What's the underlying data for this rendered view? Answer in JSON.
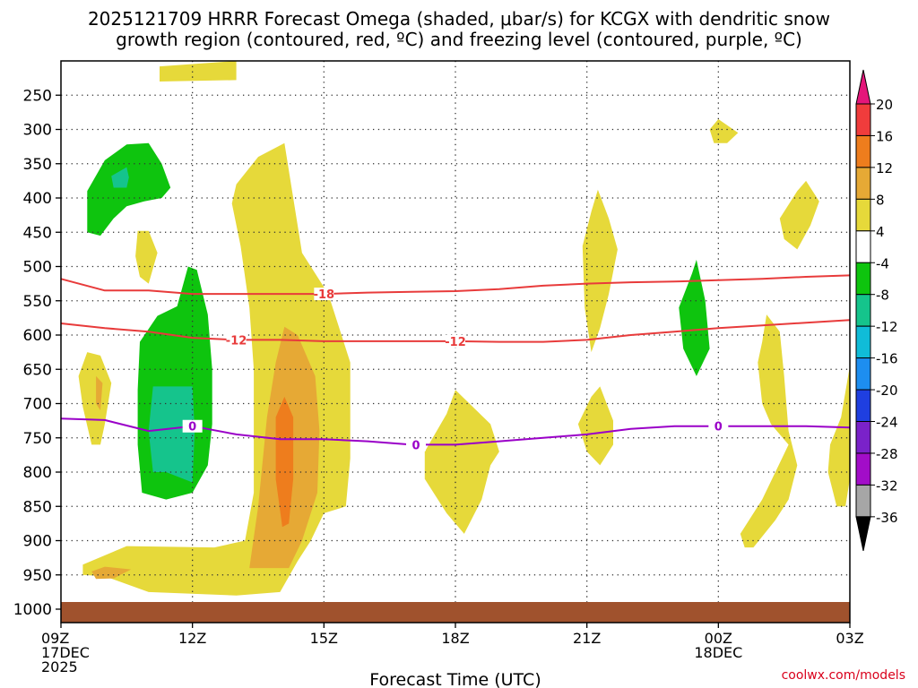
{
  "title_line1": "2025121709 HRRR Forecast Omega (shaded, μbar/s) for KCGX with dendritic snow",
  "title_line2": "growth region (contoured, red, ºC) and freezing level (contoured, purple, ºC)",
  "credit": "coolwx.com/models",
  "chart_data": {
    "type": "time-height contour",
    "xlabel": "Forecast Time (UTC)",
    "x_ticks": [
      {
        "hour": 0,
        "lines": [
          "09Z",
          "17DEC",
          "2025"
        ]
      },
      {
        "hour": 3,
        "lines": [
          "12Z"
        ]
      },
      {
        "hour": 6,
        "lines": [
          "15Z"
        ]
      },
      {
        "hour": 9,
        "lines": [
          "18Z"
        ]
      },
      {
        "hour": 12,
        "lines": [
          "21Z"
        ]
      },
      {
        "hour": 15,
        "lines": [
          "00Z",
          "18DEC"
        ]
      },
      {
        "hour": 18,
        "lines": [
          "03Z"
        ]
      }
    ],
    "xlim": [
      0,
      18
    ],
    "y_ticks": [
      250,
      300,
      350,
      400,
      450,
      500,
      550,
      600,
      650,
      700,
      750,
      800,
      850,
      900,
      950,
      1000
    ],
    "ylim": [
      1000,
      200
    ],
    "colorbar": {
      "labels": [
        "20",
        "16",
        "12",
        "8",
        "4",
        "-4",
        "-8",
        "-12",
        "-16",
        "-20",
        "-24",
        "-28",
        "-32",
        "-36"
      ],
      "colors": [
        "#f03c3c",
        "#ee7d1d",
        "#e6a935",
        "#e6d93a",
        "#ffffff",
        "#0ec40e",
        "#15c48c",
        "#10bcd8",
        "#1d8ef0",
        "#1f3fe0",
        "#7a22c9",
        "#a20dc8",
        "#a6a6a6"
      ],
      "top_color": "#e4167a",
      "bottom_color": "#000000"
    },
    "contour_labels": [
      {
        "text": "-18",
        "hour": 6.0,
        "p": 540,
        "color": "#e83b3b"
      },
      {
        "text": "-12",
        "hour": 4.0,
        "p": 607,
        "color": "#e83b3b"
      },
      {
        "text": "-12",
        "hour": 9.0,
        "p": 609,
        "color": "#e83b3b"
      },
      {
        "text": "0",
        "hour": 3.0,
        "p": 733,
        "color": "#9a00c8"
      },
      {
        "text": "0",
        "hour": 8.1,
        "p": 760,
        "color": "#9a00c8"
      },
      {
        "text": "0",
        "hour": 15.0,
        "p": 733,
        "color": "#9a00c8"
      }
    ],
    "contours": [
      {
        "name": "dgz-minus18-line",
        "color": "#e83b3b",
        "points": [
          [
            0,
            518
          ],
          [
            1,
            535
          ],
          [
            2,
            535
          ],
          [
            3,
            540
          ],
          [
            4,
            540
          ],
          [
            5,
            540
          ],
          [
            6,
            540
          ],
          [
            7,
            538
          ],
          [
            8,
            537
          ],
          [
            9,
            536
          ],
          [
            10,
            533
          ],
          [
            11,
            528
          ],
          [
            12,
            525
          ],
          [
            13,
            523
          ],
          [
            14,
            522
          ],
          [
            15,
            520
          ],
          [
            16,
            518
          ],
          [
            17,
            515
          ],
          [
            18,
            513
          ]
        ]
      },
      {
        "name": "dgz-minus12-line",
        "color": "#e83b3b",
        "points": [
          [
            0,
            583
          ],
          [
            1,
            590
          ],
          [
            2,
            595
          ],
          [
            3,
            604
          ],
          [
            4,
            607
          ],
          [
            5,
            607
          ],
          [
            6,
            609
          ],
          [
            7,
            609
          ],
          [
            8,
            609
          ],
          [
            9,
            609
          ],
          [
            10,
            610
          ],
          [
            11,
            610
          ],
          [
            12,
            607
          ],
          [
            13,
            600
          ],
          [
            14,
            595
          ],
          [
            15,
            590
          ],
          [
            16,
            586
          ],
          [
            17,
            582
          ],
          [
            18,
            578
          ]
        ]
      },
      {
        "name": "freezing-level-line",
        "color": "#9a00c8",
        "points": [
          [
            0,
            722
          ],
          [
            1,
            724
          ],
          [
            2,
            740
          ],
          [
            3,
            733
          ],
          [
            4,
            745
          ],
          [
            5,
            752
          ],
          [
            6,
            752
          ],
          [
            7,
            755
          ],
          [
            8,
            760
          ],
          [
            9,
            760
          ],
          [
            10,
            755
          ],
          [
            11,
            750
          ],
          [
            12,
            745
          ],
          [
            13,
            737
          ],
          [
            14,
            733
          ],
          [
            15,
            733
          ],
          [
            16,
            733
          ],
          [
            17,
            733
          ],
          [
            18,
            735
          ]
        ]
      }
    ],
    "shaded_regions": [
      {
        "name": "omega-pos4-top-left",
        "color": "#e6d93a",
        "points": [
          [
            2.25,
            208
          ],
          [
            4.0,
            200
          ],
          [
            4.0,
            228
          ],
          [
            2.25,
            230
          ]
        ]
      },
      {
        "name": "omega-neg4-upper-left",
        "color": "#0ec40e",
        "points": [
          [
            0.6,
            450
          ],
          [
            0.6,
            390
          ],
          [
            1.0,
            345
          ],
          [
            1.5,
            322
          ],
          [
            2.0,
            320
          ],
          [
            2.3,
            350
          ],
          [
            2.5,
            385
          ],
          [
            2.3,
            400
          ],
          [
            1.9,
            405
          ],
          [
            1.5,
            412
          ],
          [
            1.2,
            430
          ],
          [
            0.9,
            455
          ]
        ]
      },
      {
        "name": "omega-neg8-upper-left",
        "color": "#15c48c",
        "points": [
          [
            1.15,
            368
          ],
          [
            1.5,
            355
          ],
          [
            1.55,
            370
          ],
          [
            1.5,
            385
          ],
          [
            1.2,
            385
          ]
        ]
      },
      {
        "name": "omega-pos4-small-left",
        "color": "#e6d93a",
        "points": [
          [
            1.75,
            448
          ],
          [
            2.0,
            448
          ],
          [
            2.2,
            480
          ],
          [
            2.0,
            525
          ],
          [
            1.8,
            515
          ],
          [
            1.7,
            485
          ]
        ]
      },
      {
        "name": "omega-pos4-left-blob",
        "color": "#e6d93a",
        "points": [
          [
            0.4,
            660
          ],
          [
            0.6,
            625
          ],
          [
            0.9,
            630
          ],
          [
            1.15,
            670
          ],
          [
            1.0,
            730
          ],
          [
            0.9,
            760
          ],
          [
            0.7,
            760
          ],
          [
            0.5,
            705
          ]
        ]
      },
      {
        "name": "omega-pos8-left-blob",
        "color": "#e6a935",
        "points": [
          [
            0.8,
            660
          ],
          [
            0.95,
            670
          ],
          [
            0.9,
            710
          ],
          [
            0.8,
            700
          ]
        ]
      },
      {
        "name": "omega-neg4-lower-left",
        "color": "#0ec40e",
        "points": [
          [
            1.8,
            610
          ],
          [
            2.2,
            572
          ],
          [
            2.65,
            558
          ],
          [
            2.9,
            500
          ],
          [
            3.1,
            505
          ],
          [
            3.35,
            570
          ],
          [
            3.45,
            650
          ],
          [
            3.45,
            730
          ],
          [
            3.35,
            790
          ],
          [
            3.0,
            830
          ],
          [
            2.4,
            840
          ],
          [
            1.85,
            830
          ],
          [
            1.75,
            760
          ],
          [
            1.75,
            680
          ]
        ]
      },
      {
        "name": "omega-neg8-lower-left",
        "color": "#15c48c",
        "points": [
          [
            2.1,
            675
          ],
          [
            3.0,
            675
          ],
          [
            3.05,
            740
          ],
          [
            3.0,
            815
          ],
          [
            2.4,
            800
          ],
          [
            2.1,
            800
          ],
          [
            2.0,
            740
          ]
        ]
      },
      {
        "name": "omega-pos4-main-column",
        "color": "#e6d93a",
        "points": [
          [
            1.0,
            952
          ],
          [
            0.5,
            950
          ],
          [
            0.5,
            935
          ],
          [
            1.5,
            908
          ],
          [
            3.5,
            910
          ],
          [
            4.2,
            900
          ],
          [
            4.4,
            830
          ],
          [
            4.4,
            650
          ],
          [
            4.3,
            560
          ],
          [
            4.1,
            470
          ],
          [
            3.9,
            408
          ],
          [
            4.0,
            380
          ],
          [
            4.5,
            340
          ],
          [
            5.1,
            320
          ],
          [
            5.3,
            400
          ],
          [
            5.5,
            480
          ],
          [
            6.1,
            540
          ],
          [
            6.6,
            640
          ],
          [
            6.6,
            780
          ],
          [
            6.5,
            850
          ],
          [
            6.0,
            860
          ],
          [
            5.7,
            900
          ],
          [
            5.4,
            930
          ],
          [
            5.0,
            975
          ],
          [
            4.0,
            980
          ],
          [
            2.0,
            975
          ]
        ]
      },
      {
        "name": "omega-pos8-main-column",
        "color": "#e6a935",
        "points": [
          [
            4.3,
            940
          ],
          [
            4.5,
            850
          ],
          [
            4.7,
            720
          ],
          [
            4.9,
            640
          ],
          [
            5.1,
            588
          ],
          [
            5.4,
            600
          ],
          [
            5.8,
            660
          ],
          [
            5.9,
            740
          ],
          [
            5.85,
            830
          ],
          [
            5.5,
            900
          ],
          [
            5.2,
            940
          ]
        ]
      },
      {
        "name": "omega-pos12-main-column",
        "color": "#ee7d1d",
        "points": [
          [
            5.05,
            880
          ],
          [
            4.9,
            810
          ],
          [
            4.9,
            720
          ],
          [
            5.1,
            690
          ],
          [
            5.3,
            720
          ],
          [
            5.3,
            810
          ],
          [
            5.2,
            875
          ]
        ]
      },
      {
        "name": "omega-pos8-bottom-left",
        "color": "#e6a935",
        "points": [
          [
            0.7,
            945
          ],
          [
            1.0,
            938
          ],
          [
            1.6,
            942
          ],
          [
            1.2,
            955
          ],
          [
            0.8,
            956
          ]
        ]
      },
      {
        "name": "omega-pos4-center-blob",
        "color": "#e6d93a",
        "points": [
          [
            8.3,
            770
          ],
          [
            8.8,
            715
          ],
          [
            9.0,
            680
          ],
          [
            9.8,
            730
          ],
          [
            10.0,
            770
          ],
          [
            9.8,
            790
          ],
          [
            9.6,
            840
          ],
          [
            9.2,
            890
          ],
          [
            8.8,
            860
          ],
          [
            8.3,
            810
          ]
        ]
      },
      {
        "name": "omega-pos4-column-21z",
        "color": "#e6d93a",
        "points": [
          [
            11.9,
            470
          ],
          [
            12.1,
            420
          ],
          [
            12.25,
            388
          ],
          [
            12.5,
            430
          ],
          [
            12.7,
            475
          ],
          [
            12.5,
            540
          ],
          [
            12.3,
            590
          ],
          [
            12.1,
            625
          ],
          [
            11.95,
            560
          ]
        ]
      },
      {
        "name": "omega-pos4-blob-21z",
        "color": "#e6d93a",
        "points": [
          [
            11.8,
            730
          ],
          [
            12.1,
            690
          ],
          [
            12.3,
            675
          ],
          [
            12.6,
            725
          ],
          [
            12.6,
            760
          ],
          [
            12.3,
            790
          ],
          [
            12.0,
            770
          ]
        ]
      },
      {
        "name": "omega-neg4-column",
        "color": "#0ec40e",
        "points": [
          [
            14.1,
            560
          ],
          [
            14.4,
            510
          ],
          [
            14.5,
            490
          ],
          [
            14.7,
            550
          ],
          [
            14.8,
            620
          ],
          [
            14.5,
            660
          ],
          [
            14.2,
            620
          ]
        ]
      },
      {
        "name": "omega-pos4-small-00z",
        "color": "#e6d93a",
        "points": [
          [
            14.8,
            300
          ],
          [
            15.0,
            285
          ],
          [
            15.45,
            305
          ],
          [
            15.2,
            320
          ],
          [
            14.9,
            320
          ]
        ]
      },
      {
        "name": "omega-pos4-right-upper",
        "color": "#e6d93a",
        "points": [
          [
            16.4,
            430
          ],
          [
            16.8,
            390
          ],
          [
            17.0,
            375
          ],
          [
            17.3,
            405
          ],
          [
            17.1,
            440
          ],
          [
            16.8,
            475
          ],
          [
            16.5,
            460
          ]
        ]
      },
      {
        "name": "omega-pos4-right-lower",
        "color": "#e6d93a",
        "points": [
          [
            15.6,
            910
          ],
          [
            15.5,
            890
          ],
          [
            16.0,
            840
          ],
          [
            16.6,
            760
          ],
          [
            16.2,
            730
          ],
          [
            16.0,
            700
          ],
          [
            15.9,
            640
          ],
          [
            16.0,
            610
          ],
          [
            16.1,
            570
          ],
          [
            16.4,
            595
          ],
          [
            16.5,
            660
          ],
          [
            16.6,
            740
          ],
          [
            16.8,
            790
          ],
          [
            16.6,
            840
          ],
          [
            16.3,
            870
          ],
          [
            15.8,
            910
          ]
        ]
      },
      {
        "name": "omega-pos4-far-right",
        "color": "#e6d93a",
        "points": [
          [
            17.9,
            850
          ],
          [
            18.0,
            810
          ],
          [
            18.0,
            645
          ],
          [
            17.8,
            720
          ],
          [
            17.55,
            760
          ],
          [
            17.5,
            800
          ],
          [
            17.7,
            850
          ]
        ]
      }
    ]
  }
}
